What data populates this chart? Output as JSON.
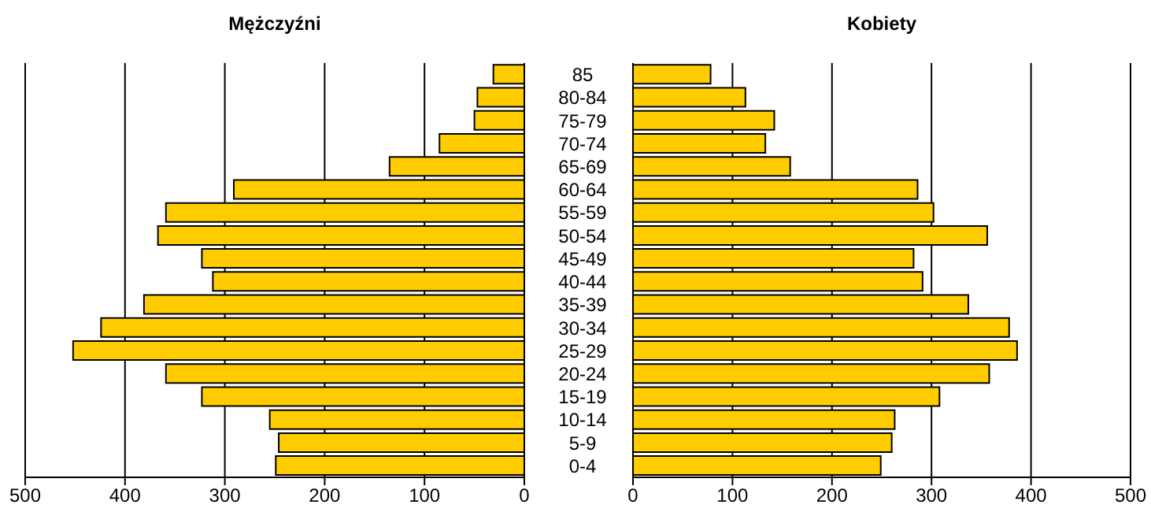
{
  "chart_data": [
    {
      "type": "bar",
      "orientation": "horizontal",
      "title": "Mężczyźni",
      "categories": [
        null,
        null,
        null,
        null,
        null,
        null,
        null,
        null,
        null,
        null,
        null,
        null,
        null,
        null,
        null,
        null,
        null,
        null
      ],
      "series": [
        {
          "color": "#ffcc00",
          "values": [
            31,
            47,
            50,
            85,
            135,
            291,
            359,
            367,
            323,
            312,
            381,
            424,
            452,
            359,
            323,
            255,
            246,
            249
          ]
        }
      ],
      "xlim": [
        500,
        0
      ],
      "xticks": [
        500,
        400,
        300,
        200,
        100,
        0
      ],
      "grid": "x"
    },
    {
      "type": "bar",
      "orientation": "horizontal",
      "title": "Kobiety",
      "categories": [
        "85",
        "80-84",
        "75-79",
        "70-74",
        "65-69",
        "60-64",
        "55-59",
        "50-54",
        "45-49",
        "40-44",
        "35-39",
        "30-34",
        "25-29",
        "20-24",
        "15-19",
        "10-14",
        "5-9",
        "0-4"
      ],
      "series": [
        {
          "color": "#ffcc00",
          "values": [
            78,
            113,
            142,
            133,
            158,
            286,
            302,
            356,
            282,
            291,
            337,
            378,
            386,
            358,
            308,
            263,
            260,
            249
          ]
        }
      ],
      "xlim": [
        0,
        500
      ],
      "xticks": [
        0,
        100,
        200,
        300,
        400,
        500
      ],
      "grid": "x"
    }
  ]
}
